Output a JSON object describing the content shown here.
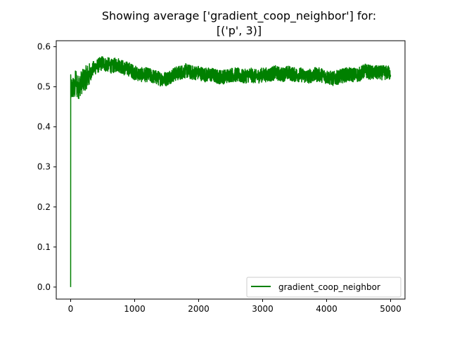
{
  "chart_data": {
    "type": "line",
    "title_line1": "Showing average ['gradient_coop_neighbor'] for:",
    "title_line2": "[('p', 3)]",
    "xlabel": "",
    "ylabel": "",
    "xlim": [
      -225,
      5225
    ],
    "ylim": [
      -0.03,
      0.615
    ],
    "xticks": [
      0,
      1000,
      2000,
      3000,
      4000,
      5000
    ],
    "xtick_labels": [
      "0",
      "1000",
      "2000",
      "3000",
      "4000",
      "5000"
    ],
    "yticks": [
      0.0,
      0.1,
      0.2,
      0.3,
      0.4,
      0.5,
      0.6
    ],
    "ytick_labels": [
      "0.0",
      "0.1",
      "0.2",
      "0.3",
      "0.4",
      "0.5",
      "0.6"
    ],
    "grid": false,
    "legend_location": "lower right",
    "series": [
      {
        "name": "gradient_coop_neighbor",
        "color": "#008000",
        "x": [
          0,
          1,
          5,
          10,
          20,
          40,
          60,
          80,
          100,
          130,
          160,
          200,
          250,
          300,
          350,
          400,
          450,
          500,
          550,
          600,
          650,
          700,
          750,
          800,
          850,
          900,
          950,
          1000,
          1100,
          1200,
          1300,
          1400,
          1500,
          1600,
          1700,
          1800,
          1900,
          2000,
          2100,
          2200,
          2300,
          2400,
          2500,
          2600,
          2700,
          2800,
          2900,
          3000,
          3100,
          3200,
          3300,
          3400,
          3500,
          3600,
          3700,
          3800,
          3900,
          4000,
          4100,
          4200,
          4300,
          4400,
          4500,
          4600,
          4700,
          4800,
          4900,
          5000
        ],
        "y": [
          0.0,
          0.53,
          0.47,
          0.5,
          0.49,
          0.5,
          0.49,
          0.52,
          0.5,
          0.5,
          0.51,
          0.515,
          0.525,
          0.53,
          0.545,
          0.55,
          0.555,
          0.56,
          0.555,
          0.555,
          0.55,
          0.555,
          0.555,
          0.55,
          0.545,
          0.545,
          0.54,
          0.535,
          0.53,
          0.53,
          0.525,
          0.52,
          0.52,
          0.53,
          0.535,
          0.54,
          0.535,
          0.535,
          0.53,
          0.53,
          0.525,
          0.525,
          0.53,
          0.53,
          0.525,
          0.53,
          0.525,
          0.53,
          0.53,
          0.535,
          0.53,
          0.535,
          0.53,
          0.53,
          0.525,
          0.53,
          0.53,
          0.525,
          0.52,
          0.525,
          0.53,
          0.53,
          0.53,
          0.54,
          0.535,
          0.535,
          0.535,
          0.535
        ]
      }
    ]
  }
}
